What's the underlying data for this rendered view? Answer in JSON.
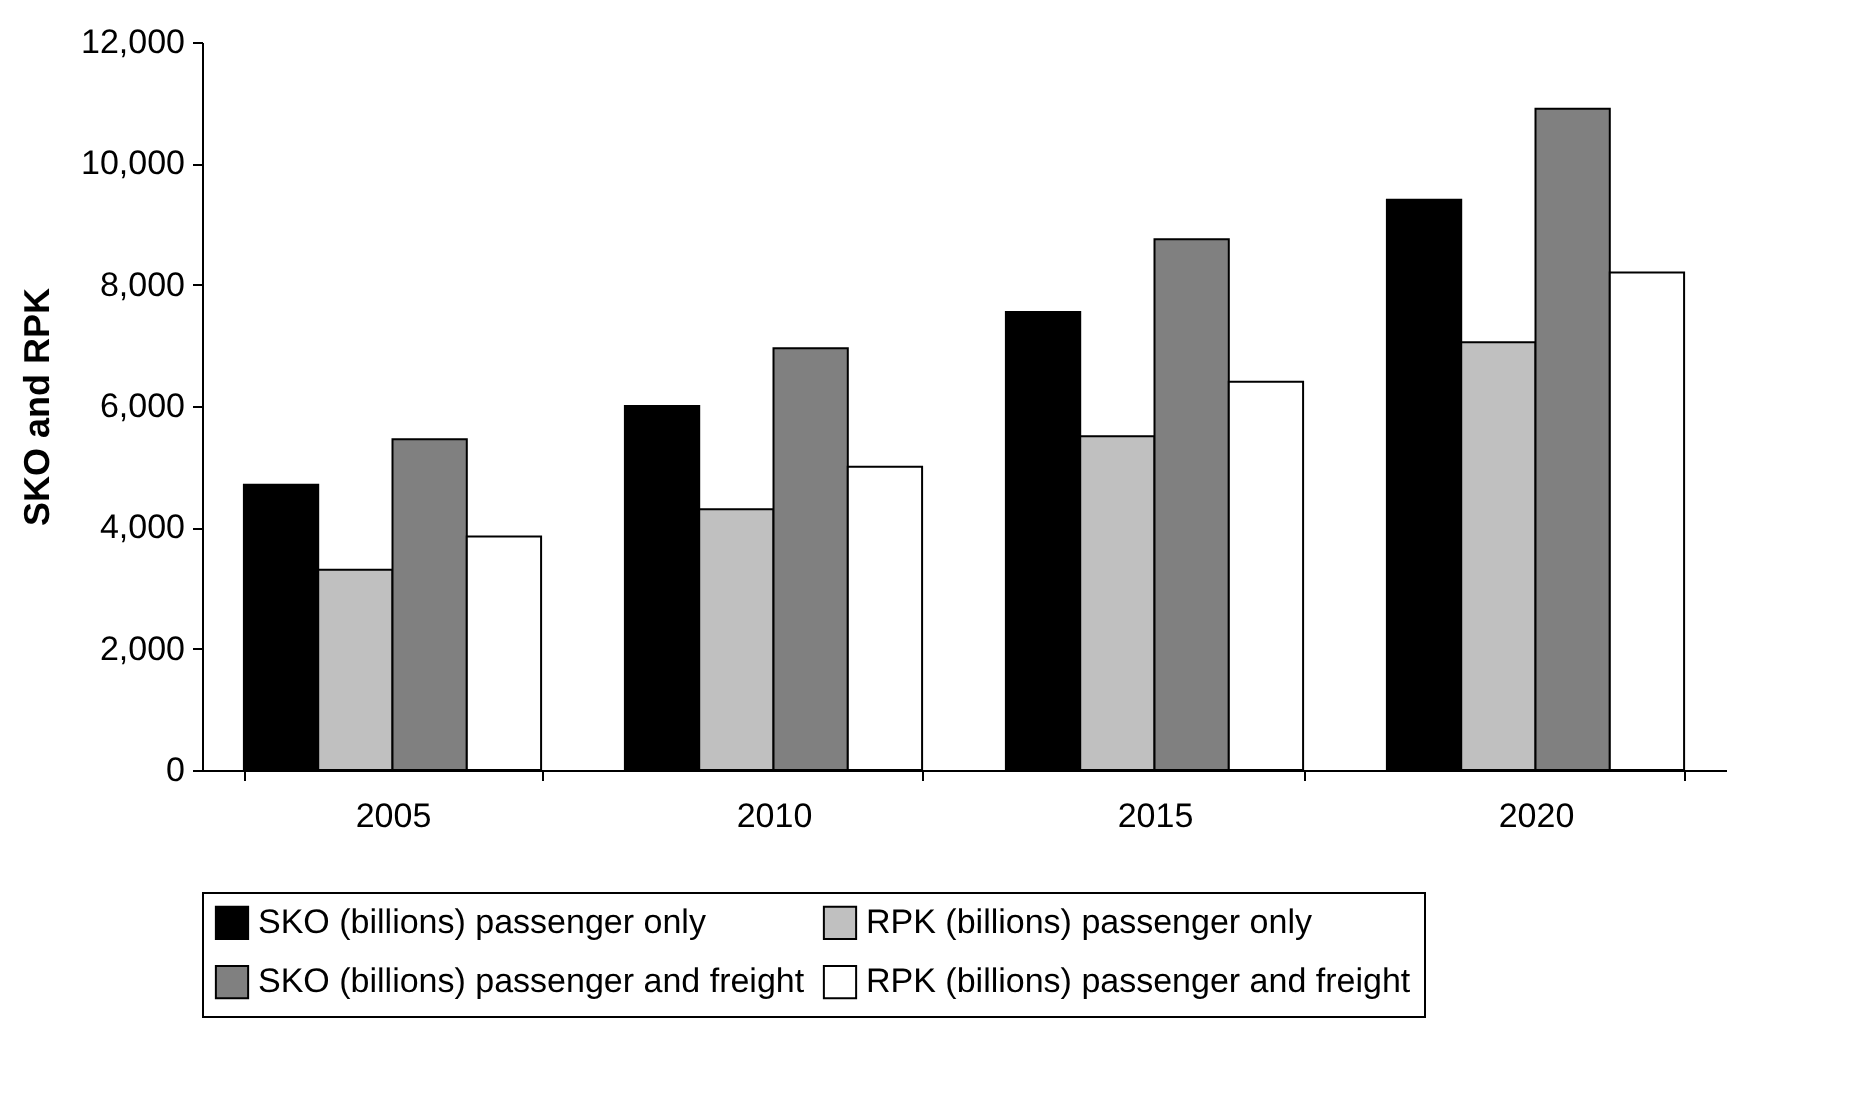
{
  "chart_data": {
    "type": "bar",
    "ylabel": "SKO and RPK",
    "categories": [
      "2005",
      "2010",
      "2015",
      "2020"
    ],
    "series": [
      {
        "name": "SKO (billions) passenger only",
        "color": "#000000",
        "values": [
          4700,
          6000,
          7550,
          9400
        ]
      },
      {
        "name": "RPK (billions) passenger only",
        "color": "#c0c0c0",
        "values": [
          3300,
          4300,
          5500,
          7050
        ]
      },
      {
        "name": "SKO (billions) passenger and freight",
        "color": "#808080",
        "values": [
          5450,
          6950,
          8750,
          10900
        ]
      },
      {
        "name": "RPK (billions) passenger and freight",
        "color": "#ffffff",
        "values": [
          3850,
          5000,
          6400,
          8200
        ]
      }
    ],
    "ylim": [
      0,
      12000
    ],
    "yticks": [
      {
        "value": 0,
        "label": "0"
      },
      {
        "value": 2000,
        "label": "2,000"
      },
      {
        "value": 4000,
        "label": "4,000"
      },
      {
        "value": 6000,
        "label": "6,000"
      },
      {
        "value": 8000,
        "label": "8,000"
      },
      {
        "value": 10000,
        "label": "10,000"
      },
      {
        "value": 12000,
        "label": "12,000"
      }
    ],
    "grid": false,
    "legend": "bottom"
  }
}
